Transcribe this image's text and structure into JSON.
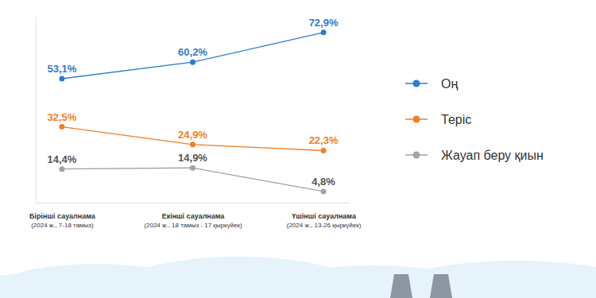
{
  "chart_data": {
    "type": "line",
    "categories": [
      "Бірінші сауалнама\n(2024 ж., 7-18 тамыз)",
      "Екінші сауалнама\n(2024 ж., 18 тамыз - 17 қыркүйек)",
      "Үшінші сауалнама\n(2024 ж., 13-26 қыркүйек)"
    ],
    "series": [
      {
        "name": "Оң",
        "color": "#2e7bcf",
        "marker": "circle",
        "values": [
          53.1,
          60.2,
          72.9
        ],
        "value_labels": [
          "53,1%",
          "60,2%",
          "72,9%"
        ]
      },
      {
        "name": "Теріс",
        "color": "#f07f2a",
        "marker": "circle",
        "values": [
          32.5,
          24.9,
          22.3
        ],
        "value_labels": [
          "32,5%",
          "24,9%",
          "22,3%"
        ]
      },
      {
        "name": "Жауап беру қиын",
        "color": "#a3a3a3",
        "marker": "circle",
        "values": [
          14.4,
          14.9,
          4.8
        ],
        "value_labels": [
          "14,4%",
          "14,9%",
          "4,8%"
        ]
      }
    ],
    "ylim": [
      0,
      80
    ],
    "grid": false,
    "legend": "right",
    "data_labels": true,
    "tick_labels": "x"
  }
}
